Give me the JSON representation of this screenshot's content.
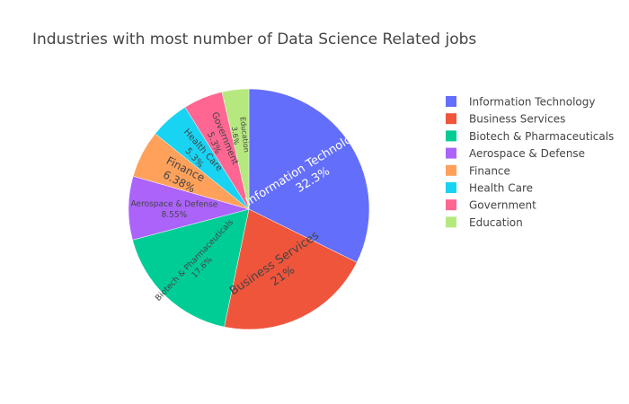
{
  "chart_data": {
    "type": "pie",
    "title": "Industries with most number of Data Science Related jobs",
    "categories": [
      "Information Technology",
      "Business Services",
      "Biotech & Pharmaceuticals",
      "Aerospace & Defense",
      "Finance",
      "Health Care",
      "Government",
      "Education"
    ],
    "values": [
      32.3,
      21,
      17.6,
      8.55,
      6.38,
      5.3,
      5.3,
      3.6
    ],
    "value_labels": [
      "32.3%",
      "21%",
      "17.6%",
      "8.55%",
      "6.38%",
      "5.3%",
      "5.3%",
      "3.6%"
    ],
    "colors": [
      "#636efa",
      "#EF553B",
      "#00cc96",
      "#ab63fa",
      "#FFA15A",
      "#19d3f3",
      "#FF6692",
      "#B6E880"
    ],
    "legend": "right",
    "direction": "clockwise",
    "start": "top"
  }
}
